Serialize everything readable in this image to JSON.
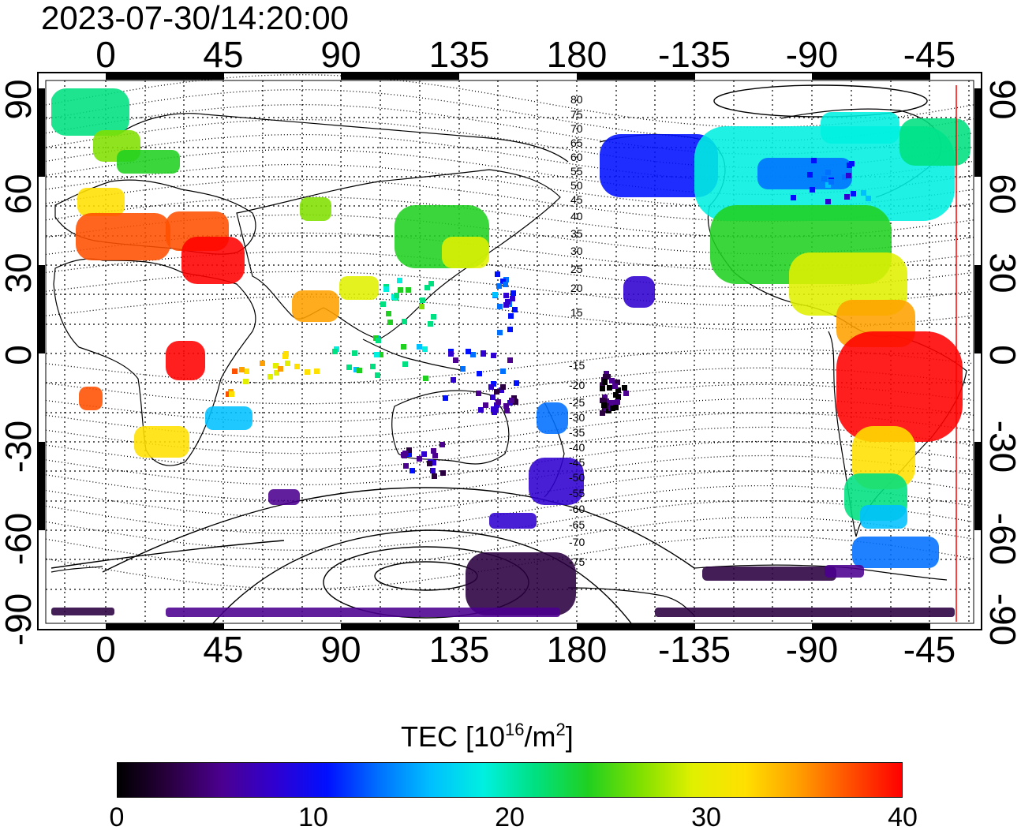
{
  "timestamp": "2023-07-30/14:20:00",
  "top_lon_ticks": [
    "0",
    "45",
    "90",
    "135",
    "180",
    "-135",
    "-90",
    "-45"
  ],
  "bottom_lon_ticks": [
    "0",
    "45",
    "90",
    "135",
    "180",
    "-135",
    "-90",
    "-45"
  ],
  "left_lat_ticks": [
    "90",
    "60",
    "30",
    "0",
    "-30",
    "-60",
    "-90"
  ],
  "right_lat_ticks": [
    "90",
    "60",
    "30",
    "0",
    "-30",
    "-60",
    "-90"
  ],
  "mag_lat_labels_north": [
    "80",
    "75",
    "70",
    "65",
    "60",
    "55",
    "50",
    "45",
    "40",
    "35",
    "30",
    "25",
    "20",
    "15"
  ],
  "mag_lat_labels_south": [
    "-15",
    "-20",
    "-25",
    "-30",
    "-35",
    "-40",
    "-45",
    "-50",
    "-55",
    "-60",
    "-65",
    "-70",
    "-75"
  ],
  "colorbar": {
    "title_main": "TEC  [10",
    "title_sup1": "16",
    "title_mid": "/m",
    "title_sup2": "2",
    "title_end": "]",
    "ticks": [
      "0",
      "10",
      "20",
      "30",
      "40"
    ],
    "min": 0,
    "max": 40,
    "colors": [
      "#000000",
      "#2a0040",
      "#4b0090",
      "#3000d0",
      "#0010ff",
      "#0070ff",
      "#00c0ff",
      "#00f0e0",
      "#00e080",
      "#20d020",
      "#80e000",
      "#e0f000",
      "#ffe000",
      "#ffa000",
      "#ff5000",
      "#ff0000"
    ]
  },
  "map": {
    "terminator_color": "#ff0000",
    "lon_min": -25,
    "lon_max": 335,
    "lat_min": -90,
    "lat_max": 90
  }
}
